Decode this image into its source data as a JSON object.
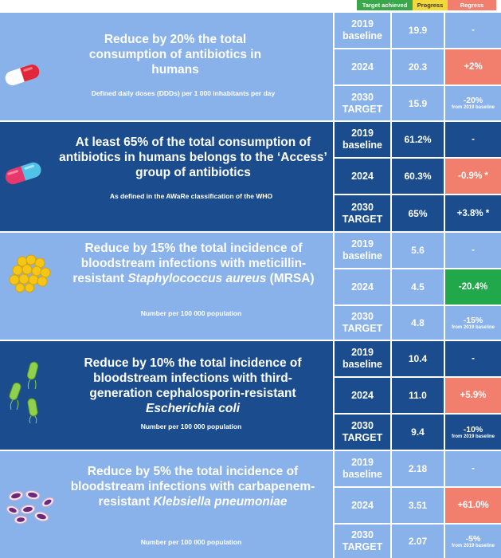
{
  "legend": {
    "achieved": "Target achieved",
    "progress": "Progress",
    "regress": "Regress"
  },
  "colors": {
    "light_block": "#89b1ea",
    "dark_block": "#1b4d8e",
    "regress": "#f27f6e",
    "achieved": "#21a84a",
    "progress": "#f3d83a"
  },
  "targets": [
    {
      "icon": "pill-red-icon",
      "goal": "Reduce by 20% the total consumption of antibiotics in humans",
      "subtitle": "Defined daily doses (DDDs) per 1 000 inhabitants per day",
      "rows": [
        {
          "label": "2019 baseline",
          "value": "19.9",
          "change": "-",
          "note": ""
        },
        {
          "label": "2024",
          "value": "20.3",
          "change": "+2%",
          "note": ""
        },
        {
          "label": "2030 TARGET",
          "value": "15.9",
          "change": "-20%",
          "note": "from 2019 baseline"
        }
      ]
    },
    {
      "icon": "pill-blue-icon",
      "goal": "At least 65% of the total consumption of antibiotics in humans belongs to the ‘Access’ group of antibiotics",
      "subtitle": "As defined in the AWaRe classification of the WHO",
      "rows": [
        {
          "label": "2019 baseline",
          "value": "61.2%",
          "change": "-",
          "note": ""
        },
        {
          "label": "2024",
          "value": "60.3%",
          "change": "-0.9% *",
          "note": ""
        },
        {
          "label": "2030 TARGET",
          "value": "65%",
          "change": "+3.8% *",
          "note": ""
        }
      ]
    },
    {
      "icon": "staphylococcus-icon",
      "goal_a": "Reduce by 15% the total incidence of bloodstream infections with meticillin-resistant ",
      "goal_i": "Staphylococcus aureus",
      "goal_b": " (MRSA)",
      "subtitle": "Number per 100 000 population",
      "rows": [
        {
          "label": "2019 baseline",
          "value": "5.6",
          "change": "-",
          "note": ""
        },
        {
          "label": "2024",
          "value": "4.5",
          "change": "-20.4%",
          "note": ""
        },
        {
          "label": "2030 TARGET",
          "value": "4.8",
          "change": "-15%",
          "note": "from 2019 baseline"
        }
      ]
    },
    {
      "icon": "e-coli-icon",
      "goal_a": "Reduce by 10% the total incidence of bloodstream infections with third-generation cephalosporin-resistant ",
      "goal_i": "Escherichia coli",
      "subtitle": "Number per 100 000 population",
      "rows": [
        {
          "label": "2019 baseline",
          "value": "10.4",
          "change": "-",
          "note": ""
        },
        {
          "label": "2024",
          "value": "11.0",
          "change": "+5.9%",
          "note": ""
        },
        {
          "label": "2030 TARGET",
          "value": "9.4",
          "change": "-10%",
          "note": "from 2019 baseline"
        }
      ]
    },
    {
      "icon": "klebsiella-icon",
      "goal_a": "Reduce by 5% the total incidence of bloodstream infections with carbapenem-resistant ",
      "goal_i": "Klebsiella pneumoniae",
      "subtitle": "Number per 100 000 population",
      "rows": [
        {
          "label": "2019 baseline",
          "value": "2.18",
          "change": "-",
          "note": ""
        },
        {
          "label": "2024",
          "value": "3.51",
          "change": "+61.0%",
          "note": ""
        },
        {
          "label": "2030 TARGET",
          "value": "2.07",
          "change": "-5%",
          "note": "from 2019 baseline"
        }
      ]
    }
  ]
}
